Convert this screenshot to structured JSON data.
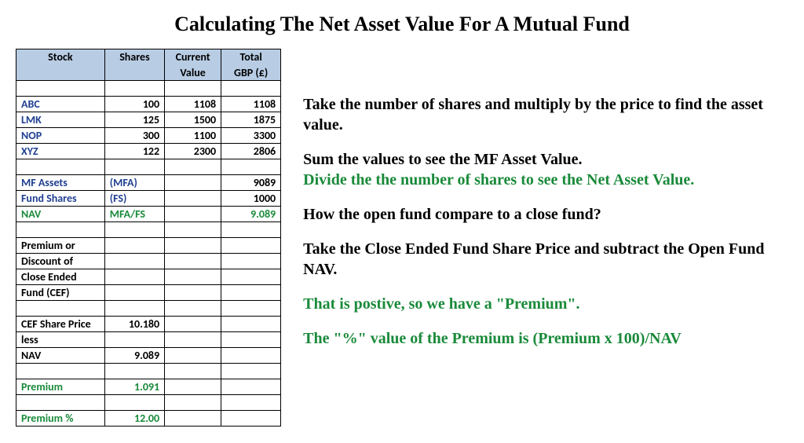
{
  "title": "Calculating The Net Asset Value For A Mutual Fund",
  "table": {
    "headers": {
      "c1_top": "Stock",
      "c1_bot": "",
      "c2_top": "Shares",
      "c2_bot": "",
      "c3_top": "Current",
      "c3_bot": "Value",
      "c4_top": "Total",
      "c4_bot": "GBP (£)"
    },
    "stocks": [
      {
        "name": "ABC",
        "shares": "100",
        "price": "1108",
        "total": "1108"
      },
      {
        "name": "LMK",
        "shares": "125",
        "price": "1500",
        "total": "1875"
      },
      {
        "name": "NOP",
        "shares": "300",
        "price": "1100",
        "total": "3300"
      },
      {
        "name": "XYZ",
        "shares": "122",
        "price": "2300",
        "total": "2806"
      }
    ],
    "mfassets": {
      "label": "MF Assets",
      "note": "(MFA)",
      "value": "9089"
    },
    "fundshares": {
      "label": "Fund Shares",
      "note": "(FS)",
      "value": "1000"
    },
    "nav": {
      "label": "NAV",
      "note": "MFA/FS",
      "value": "9.089"
    },
    "premdisc": {
      "l1": "Premium or",
      "l2": "Discount of",
      "l3": "Close Ended",
      "l4": "Fund (CEF)"
    },
    "cefprice": {
      "label": "CEF Share Price",
      "value": "10.180"
    },
    "less": {
      "label": "less"
    },
    "nav2": {
      "label": "NAV",
      "value": "9.089"
    },
    "premium": {
      "label": "Premium",
      "value": "1.091"
    },
    "premiumpct": {
      "label": "Premium %",
      "value": "12.00"
    }
  },
  "explain": {
    "p1": "Take the number of shares and multiply by the price to find the asset value.",
    "p2": "Sum the values to see the MF Asset Value.",
    "p3": "Divide the the number of shares to see the Net Asset Value.",
    "p4": "How the open fund compare to a close fund?",
    "p5": "Take the Close Ended Fund Share Price and subtract the Open Fund NAV.",
    "p6": "That is postive, so we have a \"Premium\".",
    "p7": "The \"%\" value of the Premium is   (Premium x 100)/NAV"
  }
}
